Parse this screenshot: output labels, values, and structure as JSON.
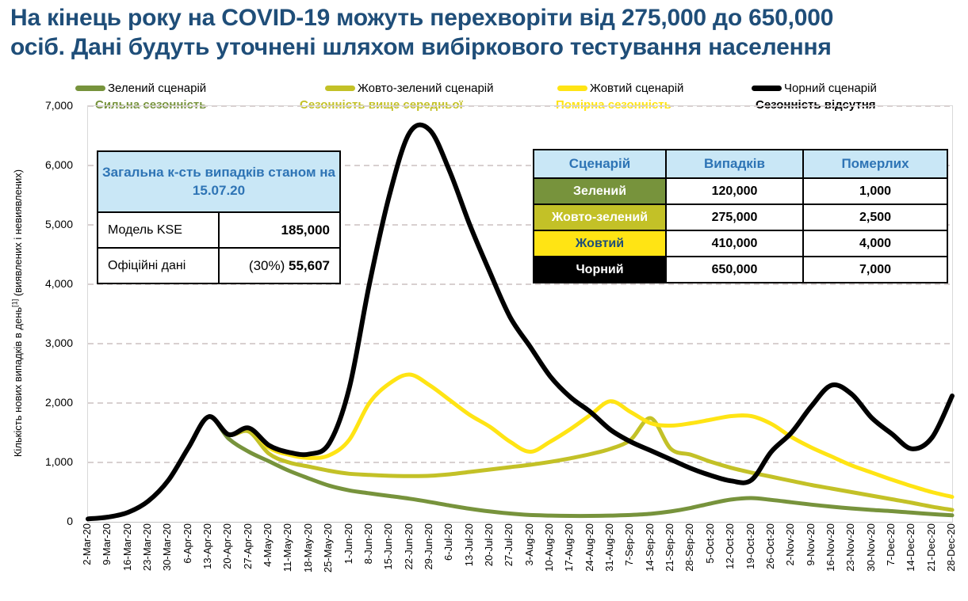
{
  "title": {
    "line1": "На кінець року на COVID-19 можуть перехворіти від 275,000 до 650,000",
    "line2": "осіб. Дані будуть уточнені шляхом вибіркового тестування населення",
    "color": "#1F4E79"
  },
  "legend": [
    {
      "label": "Зелений сценарій",
      "subtitle": "Сильна сезонність",
      "color": "#77933C"
    },
    {
      "label": "Жовто-зелений сценарій",
      "subtitle": "Сезонність вище середньої",
      "color": "#C3C127"
    },
    {
      "label": "Жовтий сценарій",
      "subtitle": "Помірна сезонність",
      "color": "#FFE414"
    },
    {
      "label": "Чорний сценарій",
      "subtitle": "Сезонність відсутня",
      "color": "#000000"
    }
  ],
  "summary_table": {
    "header": "Загальна к-сть випадків станом на 15.07.20",
    "header_bg": "#C9E7F6",
    "header_color": "#2E74B5",
    "rows": [
      {
        "label": "Модель KSE",
        "prefix": "",
        "value": "185,000"
      },
      {
        "label": "Офіційні дані",
        "prefix": "(30%)",
        "value": "55,607"
      }
    ]
  },
  "scenario_table": {
    "headers": [
      "Сценарій",
      "Випадків",
      "Померлих"
    ],
    "header_bg": "#C9E7F6",
    "header_color": "#2E74B5",
    "rows": [
      {
        "name": "Зелений",
        "cases": "120,000",
        "deaths": "1,000",
        "bg": "#77933C",
        "fg": "#FFFFFF"
      },
      {
        "name": "Жовто-зелений",
        "cases": "275,000",
        "deaths": "2,500",
        "bg": "#C3C127",
        "fg": "#FFFFFF"
      },
      {
        "name": "Жовтий",
        "cases": "410,000",
        "deaths": "4,000",
        "bg": "#FFE414",
        "fg": "#1F4E79"
      },
      {
        "name": "Чорний",
        "cases": "650,000",
        "deaths": "7,000",
        "bg": "#000000",
        "fg": "#FFFFFF"
      }
    ]
  },
  "chart_data": {
    "type": "line",
    "ylabel": "Кількість нових випадків в день[1] (виявлених і невиявлених)",
    "ylabel_main": "Кількість нових випадків в день",
    "ylabel_sup": "[1]",
    "ylabel_tail": " (виявлених і невиявлених)",
    "ylim": [
      0,
      7000
    ],
    "yticks": [
      0,
      1000,
      2000,
      3000,
      4000,
      5000,
      6000,
      7000
    ],
    "ytick_labels": [
      "0",
      "1,000",
      "2,000",
      "3,000",
      "4,000",
      "5,000",
      "6,000",
      "7,000"
    ],
    "grid": "horizontal-dashed",
    "legend_position": "top",
    "x": [
      "2-Mar-20",
      "9-Mar-20",
      "16-Mar-20",
      "23-Mar-20",
      "30-Mar-20",
      "6-Apr-20",
      "13-Apr-20",
      "20-Apr-20",
      "27-Apr-20",
      "4-May-20",
      "11-May-20",
      "18-May-20",
      "25-May-20",
      "1-Jun-20",
      "8-Jun-20",
      "15-Jun-20",
      "22-Jun-20",
      "29-Jun-20",
      "6-Jul-20",
      "13-Jul-20",
      "20-Jul-20",
      "27-Jul-20",
      "3-Aug-20",
      "10-Aug-20",
      "17-Aug-20",
      "24-Aug-20",
      "31-Aug-20",
      "7-Sep-20",
      "14-Sep-20",
      "21-Sep-20",
      "28-Sep-20",
      "5-Oct-20",
      "12-Oct-20",
      "19-Oct-20",
      "26-Oct-20",
      "2-Nov-20",
      "9-Nov-20",
      "16-Nov-20",
      "23-Nov-20",
      "30-Nov-20",
      "7-Dec-20",
      "14-Dec-20",
      "21-Dec-20",
      "28-Dec-20"
    ],
    "series": [
      {
        "name": "Зелений сценарій",
        "color": "#77933C",
        "width": 5,
        "values": [
          50,
          80,
          160,
          350,
          700,
          1250,
          1770,
          1400,
          1180,
          1020,
          860,
          730,
          610,
          530,
          480,
          435,
          390,
          335,
          275,
          220,
          175,
          140,
          115,
          105,
          100,
          100,
          105,
          115,
          135,
          175,
          235,
          310,
          375,
          400,
          370,
          330,
          290,
          255,
          225,
          200,
          180,
          155,
          130,
          110
        ]
      },
      {
        "name": "Жовто-зелений сценарій",
        "color": "#C3C127",
        "width": 5,
        "values": [
          50,
          80,
          160,
          350,
          700,
          1250,
          1770,
          1470,
          1520,
          1150,
          1000,
          930,
          860,
          810,
          790,
          775,
          770,
          775,
          800,
          840,
          880,
          920,
          960,
          1010,
          1070,
          1140,
          1230,
          1380,
          1745,
          1230,
          1130,
          1010,
          910,
          830,
          760,
          690,
          620,
          560,
          500,
          440,
          380,
          320,
          255,
          200
        ]
      },
      {
        "name": "Жовтий сценарій",
        "color": "#FFE414",
        "width": 5,
        "values": [
          50,
          80,
          160,
          350,
          700,
          1250,
          1770,
          1470,
          1570,
          1250,
          1130,
          1075,
          1120,
          1380,
          2000,
          2330,
          2480,
          2300,
          2050,
          1800,
          1600,
          1350,
          1180,
          1350,
          1560,
          1800,
          2030,
          1850,
          1660,
          1620,
          1660,
          1720,
          1780,
          1780,
          1650,
          1430,
          1250,
          1100,
          950,
          830,
          710,
          600,
          500,
          420
        ]
      },
      {
        "name": "Чорний сценарій",
        "color": "#000000",
        "width": 6,
        "values": [
          50,
          80,
          160,
          350,
          700,
          1250,
          1770,
          1470,
          1580,
          1290,
          1170,
          1140,
          1320,
          2250,
          4000,
          5500,
          6550,
          6600,
          5900,
          5000,
          4200,
          3450,
          2950,
          2450,
          2100,
          1850,
          1550,
          1350,
          1200,
          1050,
          900,
          780,
          690,
          700,
          1180,
          1500,
          1950,
          2300,
          2150,
          1750,
          1480,
          1230,
          1420,
          2120
        ]
      }
    ]
  }
}
